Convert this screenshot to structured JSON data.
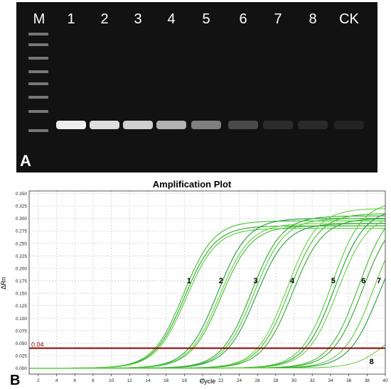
{
  "gel_panel": {
    "panel_label": "A",
    "lane_labels": [
      "M",
      "1",
      "2",
      "3",
      "4",
      "5",
      "6",
      "7",
      "8",
      "CK"
    ],
    "band_intensity": [
      0.95,
      0.9,
      0.85,
      0.75,
      0.55,
      0.3,
      0.12,
      0.1,
      0.05
    ]
  },
  "plot_panel": {
    "panel_label": "B"
  },
  "chart_data": {
    "type": "line",
    "title": "Amplification Plot",
    "xlabel": "Cycle",
    "ylabel": "ΔRn",
    "xlim": [
      1,
      40
    ],
    "ylim": [
      -0.012,
      0.355
    ],
    "x_ticks": [
      "2",
      "4",
      "6",
      "8",
      "10",
      "12",
      "14",
      "16",
      "18",
      "20",
      "22",
      "24",
      "26",
      "28",
      "30",
      "32",
      "34",
      "36",
      "38",
      "40"
    ],
    "y_ticks": [
      "0.000",
      "0.025",
      "0.050",
      "0.075",
      "0.100",
      "0.125",
      "0.150",
      "0.175",
      "0.200",
      "0.225",
      "0.250",
      "0.275",
      "0.300",
      "0.325",
      "0.350"
    ],
    "grid": true,
    "threshold": {
      "value": 0.04,
      "label": "0.04",
      "color": "#8b0000"
    },
    "curve_labels": [
      "1",
      "2",
      "3",
      "4",
      "5",
      "6",
      "7",
      "8"
    ],
    "series": [
      {
        "label": "1",
        "ct": 14.8,
        "plateau": 0.295
      },
      {
        "label": "1",
        "ct": 15.0,
        "plateau": 0.285
      },
      {
        "label": "1",
        "ct": 15.2,
        "plateau": 0.28
      },
      {
        "label": "2",
        "ct": 18.5,
        "plateau": 0.3
      },
      {
        "label": "2",
        "ct": 18.8,
        "plateau": 0.29
      },
      {
        "label": "2",
        "ct": 19.0,
        "plateau": 0.285
      },
      {
        "label": "3",
        "ct": 22.2,
        "plateau": 0.305
      },
      {
        "label": "3",
        "ct": 22.5,
        "plateau": 0.3
      },
      {
        "label": "3",
        "ct": 22.8,
        "plateau": 0.29
      },
      {
        "label": "4",
        "ct": 26.0,
        "plateau": 0.32
      },
      {
        "label": "4",
        "ct": 26.3,
        "plateau": 0.31
      },
      {
        "label": "4",
        "ct": 26.7,
        "plateau": 0.3
      },
      {
        "label": "5",
        "ct": 30.8,
        "plateau": 0.335
      },
      {
        "label": "5",
        "ct": 31.2,
        "plateau": 0.32
      },
      {
        "label": "5",
        "ct": 31.6,
        "plateau": 0.31
      },
      {
        "label": "6",
        "ct": 33.8,
        "plateau": 0.33
      },
      {
        "label": "6",
        "ct": 34.3,
        "plateau": 0.315
      },
      {
        "label": "7",
        "ct": 35.5,
        "plateau": 0.32
      },
      {
        "label": "7",
        "ct": 36.2,
        "plateau": 0.3
      },
      {
        "label": "8",
        "ct": 39.5,
        "plateau": 0.1
      }
    ]
  }
}
